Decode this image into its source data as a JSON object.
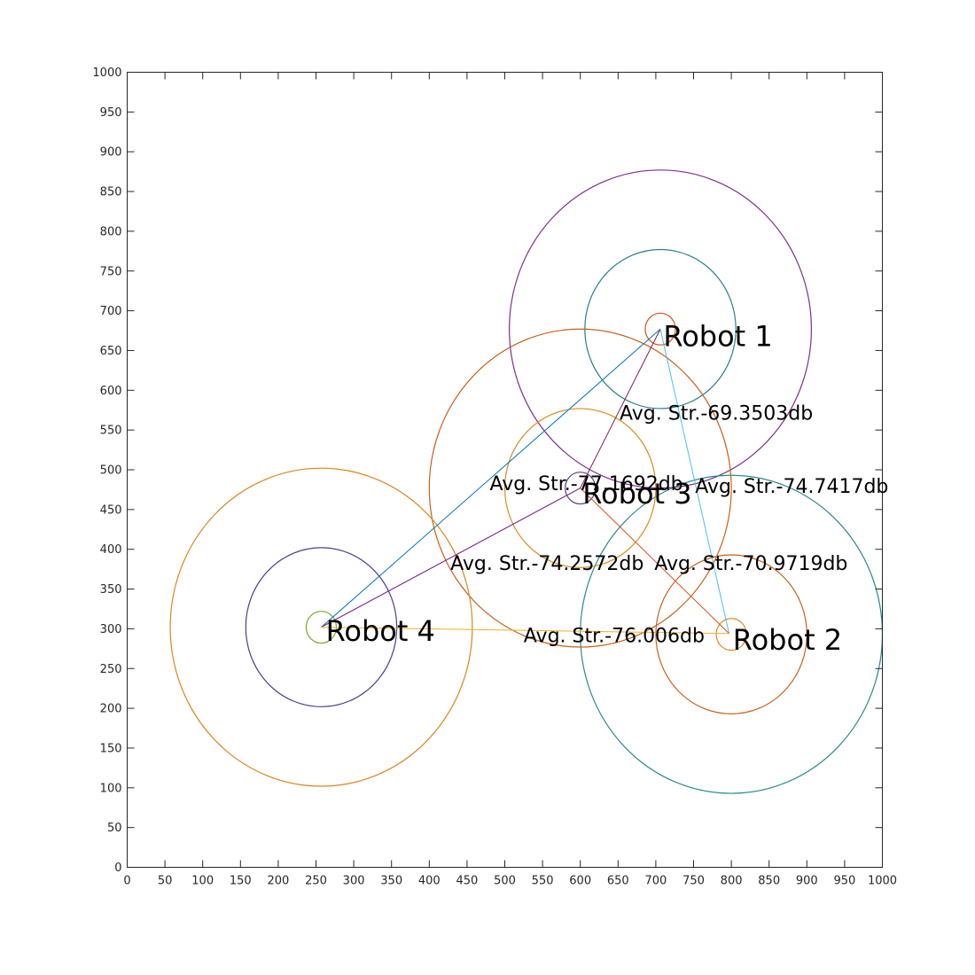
{
  "chart_data": {
    "type": "scatter",
    "title": "",
    "xlabel": "",
    "ylabel": "",
    "xlim": [
      0,
      1000
    ],
    "ylim": [
      0,
      1000
    ],
    "x_ticks": [
      0,
      50,
      100,
      150,
      200,
      250,
      300,
      350,
      400,
      450,
      500,
      550,
      600,
      650,
      700,
      750,
      800,
      850,
      900,
      950,
      1000
    ],
    "y_ticks": [
      0,
      50,
      100,
      150,
      200,
      250,
      300,
      350,
      400,
      450,
      500,
      550,
      600,
      650,
      700,
      750,
      800,
      850,
      900,
      950,
      1000
    ],
    "x_tick_labels": [
      "0",
      "50",
      "100",
      "150",
      "200",
      "250",
      "300",
      "350",
      "400",
      "450",
      "500",
      "550",
      "600",
      "650",
      "700",
      "750",
      "800",
      "850",
      "900",
      "950",
      "1000"
    ],
    "y_tick_labels": [
      "0",
      "50",
      "100",
      "150",
      "200",
      "250",
      "300",
      "350",
      "400",
      "450",
      "500",
      "550",
      "600",
      "650",
      "700",
      "750",
      "800",
      "850",
      "900",
      "950",
      "1000"
    ],
    "grid": false,
    "robots": [
      {
        "label": "Robot 1",
        "x": 706,
        "y": 677,
        "label_x": 710,
        "label_y": 668,
        "color": "#000000"
      },
      {
        "label": "Robot 2",
        "x": 797,
        "y": 294,
        "label_x": 802,
        "label_y": 286,
        "color": "#000000"
      },
      {
        "label": "Robot 3",
        "x": 600,
        "y": 477,
        "label_x": 603,
        "label_y": 470,
        "color": "#000000"
      },
      {
        "label": "Robot 4",
        "x": 257,
        "y": 302,
        "label_x": 263,
        "label_y": 297,
        "color": "#000000"
      }
    ],
    "circles": [
      {
        "cx": 706,
        "cy": 677,
        "r": 20,
        "color": "#d95319"
      },
      {
        "cx": 706,
        "cy": 677,
        "r": 100,
        "color": "#2a7f8a"
      },
      {
        "cx": 706,
        "cy": 677,
        "r": 200,
        "color": "#7e2f8e"
      },
      {
        "cx": 800,
        "cy": 293,
        "r": 20,
        "color": "#d98c1f"
      },
      {
        "cx": 800,
        "cy": 293,
        "r": 100,
        "color": "#c8601a"
      },
      {
        "cx": 800,
        "cy": 293,
        "r": 200,
        "color": "#2a8a8a"
      },
      {
        "cx": 600,
        "cy": 477,
        "r": 20,
        "color": "#5b3f8e"
      },
      {
        "cx": 600,
        "cy": 477,
        "r": 100,
        "color": "#d98c1f"
      },
      {
        "cx": 600,
        "cy": 477,
        "r": 200,
        "color": "#c8601a"
      },
      {
        "cx": 257,
        "cy": 302,
        "r": 20,
        "color": "#77ac30"
      },
      {
        "cx": 257,
        "cy": 302,
        "r": 100,
        "color": "#4a3f8e"
      },
      {
        "cx": 257,
        "cy": 302,
        "r": 200,
        "color": "#d9861f"
      }
    ],
    "links": [
      {
        "from": "Robot 1",
        "to": "Robot 4",
        "x1": 706,
        "y1": 677,
        "x2": 257,
        "y2": 302,
        "color": "#0072bd",
        "label": "",
        "label_x": 0,
        "label_y": 0
      },
      {
        "from": "Robot 1",
        "to": "Robot 3",
        "x1": 706,
        "y1": 677,
        "x2": 600,
        "y2": 477,
        "color": "#7e1f5e",
        "label": "Avg. Str.-69.3503db",
        "label_x": 652,
        "label_y": 572
      },
      {
        "from": "Robot 1",
        "to": "Robot 2",
        "x1": 706,
        "y1": 677,
        "x2": 797,
        "y2": 294,
        "color": "#4dbeee",
        "label": "Avg. Str.-74.7417db",
        "label_x": 752,
        "label_y": 480
      },
      {
        "from": "Robot 3",
        "to": "Robot 4",
        "x1": 600,
        "y1": 477,
        "x2": 257,
        "y2": 302,
        "color": "#7e2f8e",
        "label": "Avg. Str.-77.1692db",
        "label_x": 480,
        "label_y": 483
      },
      {
        "from": "Robot 3",
        "to": "Robot 2",
        "x1": 600,
        "y1": 477,
        "x2": 797,
        "y2": 294,
        "color": "#d95319",
        "label": "Avg. Str.-70.9719db",
        "label_x": 698,
        "label_y": 383
      },
      {
        "from": "Robot 4",
        "to": "Robot 3",
        "x1": 257,
        "y1": 302,
        "x2": 600,
        "y2": 477,
        "color": "#7e2f8e",
        "label": "Avg. Str.-74.2572db",
        "label_x": 428,
        "label_y": 383
      },
      {
        "from": "Robot 4",
        "to": "Robot 2",
        "x1": 257,
        "y1": 302,
        "x2": 797,
        "y2": 294,
        "color": "#edb120",
        "label": "Avg. Str.-76.006db",
        "label_x": 525,
        "label_y": 292
      }
    ]
  }
}
